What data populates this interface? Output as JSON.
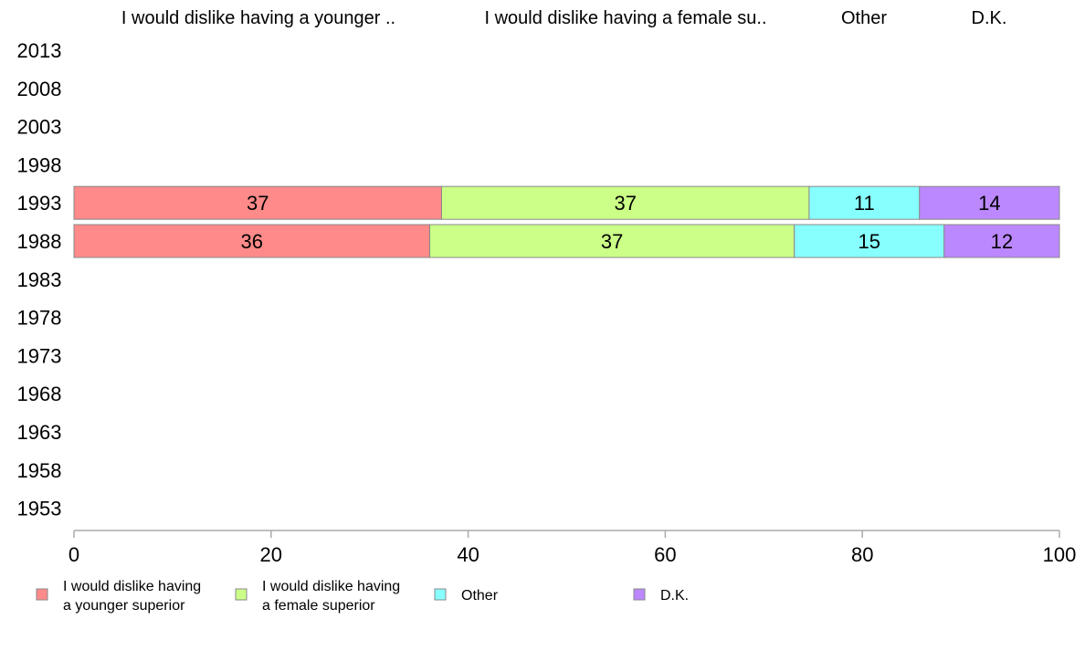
{
  "chart_data": {
    "type": "bar",
    "orientation": "horizontal",
    "stacked": true,
    "categories": [
      "2013",
      "2008",
      "2003",
      "1998",
      "1993",
      "1988",
      "1983",
      "1978",
      "1973",
      "1968",
      "1963",
      "1958",
      "1953"
    ],
    "series": [
      {
        "name": "I would dislike having a younger superior",
        "header": "I would dislike having a younger ..",
        "legend_lines": [
          "I would dislike having",
          "a younger superior"
        ],
        "color": "#ff8a8a",
        "values": [
          null,
          null,
          null,
          null,
          37.3,
          36.1,
          null,
          null,
          null,
          null,
          null,
          null,
          null
        ],
        "labels": [
          "",
          "",
          "",
          "",
          "37",
          "36",
          "",
          "",
          "",
          "",
          "",
          "",
          ""
        ]
      },
      {
        "name": "I would dislike having a female superior",
        "header": "I would dislike having a female su..",
        "legend_lines": [
          "I would dislike having",
          "a female superior"
        ],
        "color": "#ccff88",
        "values": [
          null,
          null,
          null,
          null,
          37.3,
          37.0,
          null,
          null,
          null,
          null,
          null,
          null,
          null
        ],
        "labels": [
          "",
          "",
          "",
          "",
          "37",
          "37",
          "",
          "",
          "",
          "",
          "",
          "",
          ""
        ]
      },
      {
        "name": "Other",
        "header": "Other",
        "legend_lines": [
          "Other"
        ],
        "color": "#88ffff",
        "values": [
          null,
          null,
          null,
          null,
          11.2,
          15.2,
          null,
          null,
          null,
          null,
          null,
          null,
          null
        ],
        "labels": [
          "",
          "",
          "",
          "",
          "11",
          "15",
          "",
          "",
          "",
          "",
          "",
          "",
          ""
        ]
      },
      {
        "name": "D.K.",
        "header": "D.K.",
        "legend_lines": [
          "D.K."
        ],
        "color": "#bb88ff",
        "values": [
          null,
          null,
          null,
          null,
          14.2,
          11.7,
          null,
          null,
          null,
          null,
          null,
          null,
          null
        ],
        "labels": [
          "",
          "",
          "",
          "",
          "14",
          "12",
          "",
          "",
          "",
          "",
          "",
          "",
          ""
        ]
      }
    ],
    "xlim": [
      0,
      100
    ],
    "xticks": [
      "0",
      "20",
      "40",
      "60",
      "80",
      "100"
    ],
    "title": "",
    "xlabel": "",
    "ylabel": "",
    "grid": false,
    "legend_position": "bottom"
  }
}
